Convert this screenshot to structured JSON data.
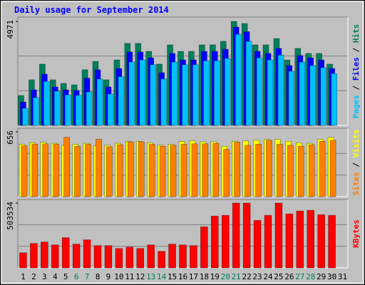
{
  "chart_data": [
    {
      "type": "bar",
      "title": "Daily usage for September 2014",
      "ylim": [
        0,
        4971
      ],
      "yticks": [
        4971
      ],
      "legend_separator": " / ",
      "series": [
        {
          "name": "Pages",
          "color": "#00C0FF",
          "values": [
            820,
            1330,
            2100,
            1640,
            1460,
            1440,
            1600,
            2220,
            1500,
            2330,
            3030,
            3130,
            2900,
            2220,
            3030,
            2900,
            2900,
            3090,
            3090,
            3200,
            4350,
            4020,
            3230,
            3130,
            3360,
            2590,
            3030,
            2860,
            2760,
            2480,
            null
          ]
        },
        {
          "name": "Files",
          "color": "#0000FF",
          "values": [
            1120,
            1700,
            2450,
            1840,
            1700,
            1670,
            2260,
            2660,
            1840,
            2720,
            3510,
            3510,
            3230,
            2520,
            3440,
            3130,
            3130,
            3540,
            3540,
            3640,
            4700,
            4480,
            3540,
            3440,
            3680,
            2860,
            3340,
            3230,
            3130,
            2720,
            null
          ]
        },
        {
          "name": "Hits",
          "color": "#00805C",
          "values": [
            1430,
            2180,
            2930,
            2180,
            2010,
            1940,
            2660,
            3060,
            2180,
            3130,
            3920,
            3920,
            3540,
            2930,
            3850,
            3540,
            3540,
            3850,
            3850,
            4020,
            4971,
            4870,
            3850,
            3850,
            4150,
            3130,
            3680,
            3440,
            3440,
            2930,
            null
          ]
        }
      ]
    },
    {
      "type": "bar",
      "ylim": [
        0,
        656
      ],
      "yticks": [
        656
      ],
      "legend_separator": " / ",
      "series": [
        {
          "name": "Sites",
          "color": "#FF8000",
          "values": [
            515,
            530,
            535,
            530,
            600,
            510,
            530,
            580,
            505,
            525,
            555,
            555,
            530,
            510,
            520,
            530,
            535,
            535,
            540,
            480,
            550,
            520,
            530,
            570,
            530,
            520,
            510,
            525,
            560,
            570,
            null
          ]
        },
        {
          "name": "Visits",
          "color": "#FFFF00",
          "values": [
            530,
            545,
            550,
            540,
            520,
            530,
            540,
            515,
            520,
            540,
            560,
            560,
            545,
            520,
            530,
            560,
            565,
            555,
            555,
            510,
            560,
            565,
            570,
            580,
            580,
            560,
            545,
            540,
            580,
            600,
            null
          ]
        }
      ]
    },
    {
      "type": "bar",
      "ylim": [
        0,
        503534
      ],
      "yticks": [
        503534
      ],
      "categories": [
        "1",
        "2",
        "3",
        "4",
        "5",
        "6",
        "7",
        "8",
        "9",
        "10",
        "11",
        "12",
        "13",
        "14",
        "15",
        "16",
        "17",
        "18",
        "19",
        "20",
        "21",
        "22",
        "23",
        "24",
        "25",
        "26",
        "27",
        "28",
        "29",
        "30",
        "31"
      ],
      "category_colors": [
        "#000000",
        "#000000",
        "#000000",
        "#000000",
        "#000000",
        "#00805C",
        "#00805C",
        "#000000",
        "#000000",
        "#000000",
        "#000000",
        "#000000",
        "#00805C",
        "#00805C",
        "#000000",
        "#000000",
        "#000000",
        "#000000",
        "#000000",
        "#00805C",
        "#00805C",
        "#000000",
        "#000000",
        "#000000",
        "#000000",
        "#000000",
        "#00805C",
        "#00805C",
        "#000000",
        "#000000",
        "#000000"
      ],
      "series": [
        {
          "name": "KBytes",
          "color": "#FF0000",
          "values": [
            117500,
            190200,
            201400,
            179000,
            235000,
            184600,
            218200,
            173400,
            173400,
            151000,
            162200,
            151000,
            179000,
            128700,
            184600,
            179000,
            173400,
            318900,
            402800,
            408400,
            503534,
            503534,
            369300,
            408400,
            503534,
            419600,
            442000,
            447600,
            413100,
            408400,
            null
          ]
        }
      ]
    }
  ]
}
